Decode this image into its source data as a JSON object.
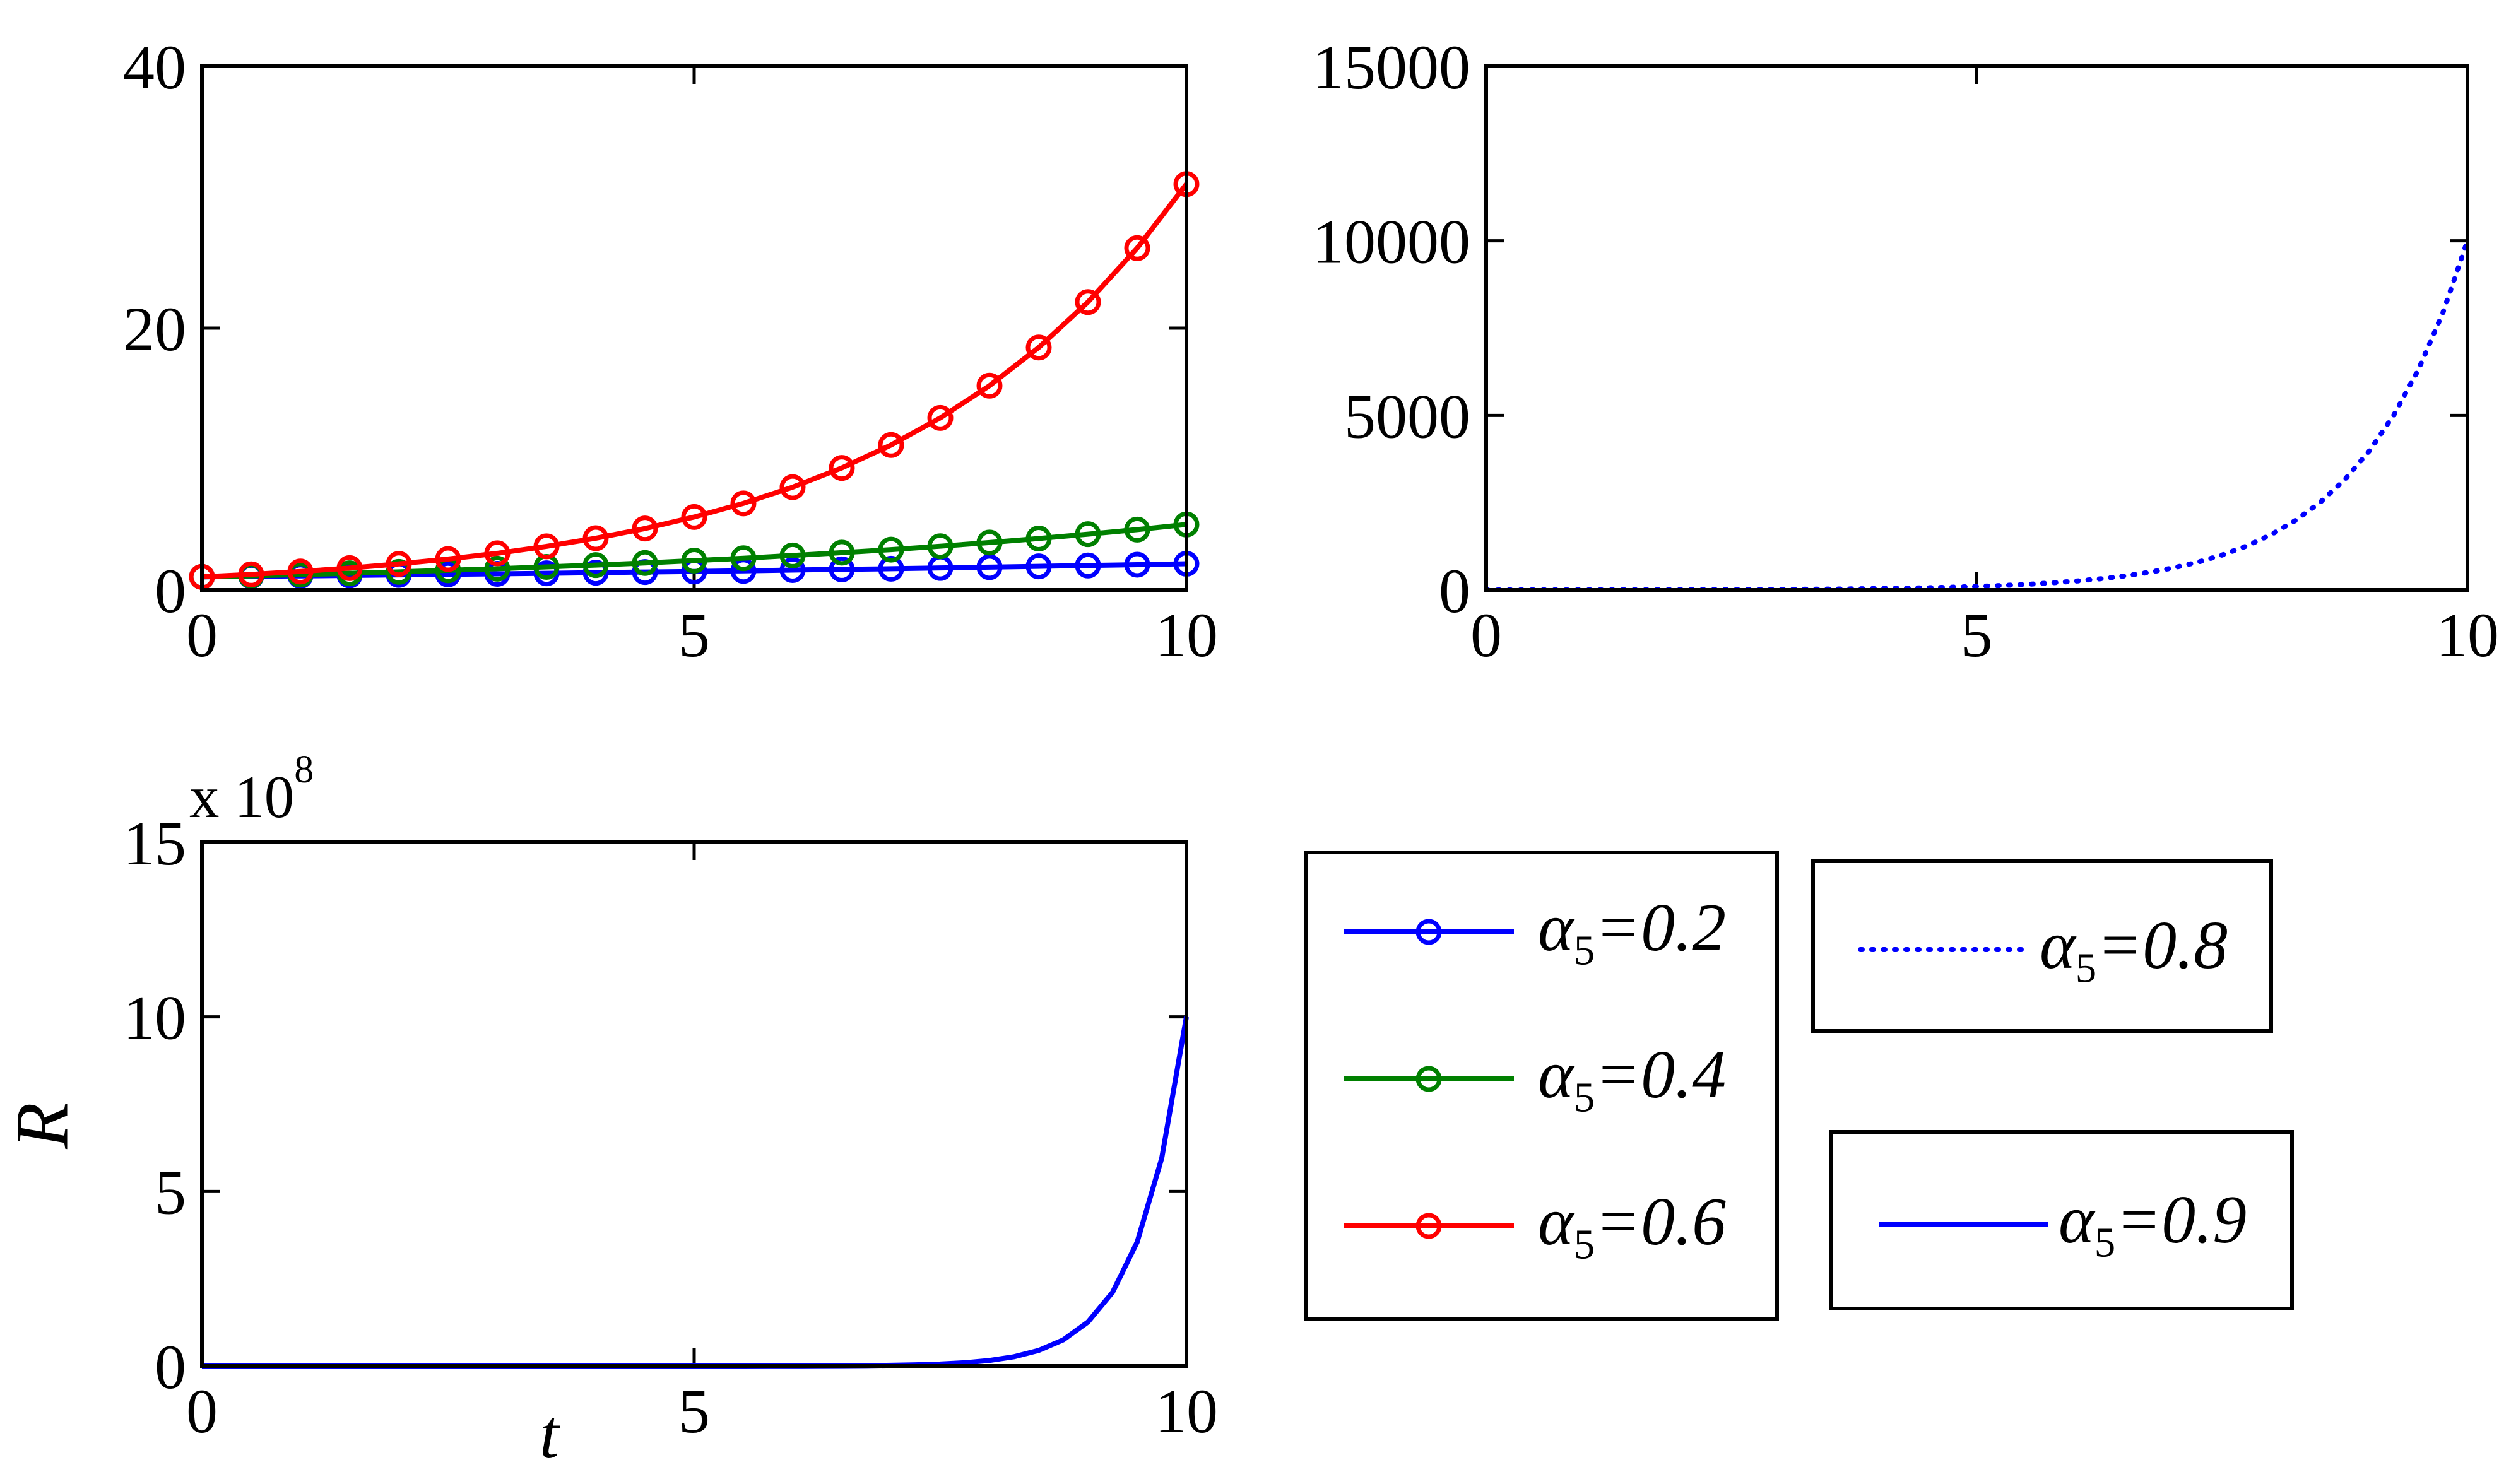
{
  "chart_data": [
    {
      "type": "line",
      "position": "top-left",
      "xlim": [
        0,
        10
      ],
      "ylim": [
        0,
        40
      ],
      "xticks": [
        0,
        5,
        10
      ],
      "xticklabels": [
        "0",
        "5",
        "10"
      ],
      "yticks": [
        0,
        20,
        40
      ],
      "yticklabels": [
        "0",
        "20",
        "40"
      ],
      "series": [
        {
          "name": "alpha_5=0.2",
          "color": "#0000FF",
          "marker": "circle",
          "style": "solid",
          "x": [
            0,
            0.5,
            1,
            1.5,
            2,
            2.5,
            3,
            3.5,
            4,
            4.5,
            5,
            5.5,
            6,
            6.5,
            7,
            7.5,
            8,
            8.5,
            9,
            9.5,
            10
          ],
          "y": [
            1,
            1.04,
            1.07,
            1.11,
            1.15,
            1.19,
            1.23,
            1.27,
            1.32,
            1.37,
            1.41,
            1.46,
            1.52,
            1.57,
            1.62,
            1.68,
            1.74,
            1.8,
            1.87,
            1.93,
            2
          ]
        },
        {
          "name": "alpha_5=0.4",
          "color": "#008000",
          "marker": "circle",
          "style": "solid",
          "x": [
            0,
            0.5,
            1,
            1.5,
            2,
            2.5,
            3,
            3.5,
            4,
            4.5,
            5,
            5.5,
            6,
            6.5,
            7,
            7.5,
            8,
            8.5,
            9,
            9.5,
            10
          ],
          "y": [
            1,
            1.08,
            1.17,
            1.27,
            1.38,
            1.5,
            1.62,
            1.76,
            1.9,
            2.06,
            2.24,
            2.42,
            2.63,
            2.85,
            3.08,
            3.34,
            3.62,
            3.93,
            4.26,
            4.61,
            5
          ]
        },
        {
          "name": "alpha_5=0.6",
          "color": "#FF0000",
          "marker": "circle",
          "style": "solid",
          "x": [
            0,
            0.5,
            1,
            1.5,
            2,
            2.5,
            3,
            3.5,
            4,
            4.5,
            5,
            5.5,
            6,
            6.5,
            7,
            7.5,
            8,
            8.5,
            9,
            9.5,
            10
          ],
          "y": [
            1,
            1.19,
            1.41,
            1.67,
            1.99,
            2.36,
            2.8,
            3.33,
            3.95,
            4.69,
            5.57,
            6.61,
            7.85,
            9.32,
            11.07,
            13.14,
            15.6,
            18.52,
            21.99,
            26.11,
            31
          ]
        }
      ]
    },
    {
      "type": "line",
      "position": "top-right",
      "xlim": [
        0,
        10
      ],
      "ylim": [
        0,
        15000
      ],
      "xticks": [
        0,
        5,
        10
      ],
      "xticklabels": [
        "0",
        "5",
        "10"
      ],
      "yticks": [
        0,
        5000,
        10000,
        15000
      ],
      "yticklabels": [
        "0",
        "5000",
        "10000",
        "15000"
      ],
      "series": [
        {
          "name": "alpha_5=0.8",
          "color": "#0000FF",
          "marker": "none",
          "style": "dotted",
          "x": [
            0,
            0.25,
            0.5,
            0.75,
            1,
            1.25,
            1.5,
            1.75,
            2,
            2.25,
            2.5,
            2.75,
            3,
            3.25,
            3.5,
            3.75,
            4,
            4.25,
            4.5,
            4.75,
            5,
            5.25,
            5.5,
            5.75,
            6,
            6.25,
            6.5,
            6.75,
            7,
            7.25,
            7.5,
            7.75,
            8,
            8.25,
            8.5,
            8.75,
            9,
            9.25,
            9.5,
            9.75,
            10
          ],
          "y": [
            1,
            1.26,
            1.58,
            2,
            2.51,
            3.16,
            3.98,
            5.01,
            6.31,
            7.94,
            10,
            12.6,
            15.8,
            20,
            25.1,
            31.6,
            39.8,
            50.1,
            63.1,
            79.4,
            100,
            126,
            158,
            200,
            251,
            316,
            398,
            501,
            631,
            794,
            1000,
            1259,
            1585,
            1995,
            2512,
            3162,
            3981,
            5012,
            6310,
            7943,
            10000
          ]
        }
      ]
    },
    {
      "type": "line",
      "position": "bottom-left",
      "xlabel": "t",
      "ylabel": "R",
      "multiplier": "x 10",
      "multiplier_exp": "8",
      "xlim": [
        0,
        10
      ],
      "ylim": [
        0,
        15
      ],
      "xticks": [
        0,
        5,
        10
      ],
      "xticklabels": [
        "0",
        "5",
        "10"
      ],
      "yticks": [
        0,
        5,
        10,
        15
      ],
      "yticklabels": [
        "0",
        "5",
        "10",
        "15"
      ],
      "series": [
        {
          "name": "alpha_5=0.9",
          "color": "#0000FF",
          "marker": "none",
          "style": "solid",
          "x": [
            0,
            0.25,
            0.5,
            0.75,
            1,
            1.25,
            1.5,
            1.75,
            2,
            2.25,
            2.5,
            2.75,
            3,
            3.25,
            3.5,
            3.75,
            4,
            4.25,
            4.5,
            4.75,
            5,
            5.25,
            5.5,
            5.75,
            6,
            6.25,
            6.5,
            6.75,
            7,
            7.25,
            7.5,
            7.75,
            8,
            8.25,
            8.5,
            8.75,
            9,
            9.25,
            9.5,
            9.75,
            10
          ],
          "y": [
            0,
            0,
            0,
            0,
            0,
            0,
            0,
            0,
            0,
            0,
            0,
            0,
            0,
            0,
            0,
            0,
            0,
            0,
            0,
            0,
            0.0003,
            0.0006,
            0.0009,
            0.0015,
            0.0025,
            0.0042,
            0.0071,
            0.0119,
            0.02,
            0.034,
            0.056,
            0.094,
            0.158,
            0.266,
            0.447,
            0.75,
            1.26,
            2.11,
            3.55,
            5.96,
            10
          ]
        }
      ]
    }
  ],
  "legends": {
    "box1": {
      "entries": [
        {
          "symbol": "α",
          "sub": "5",
          "rest": "=0.2",
          "color": "#0000FF",
          "line": "solid-circle"
        },
        {
          "symbol": "α",
          "sub": "5",
          "rest": "=0.4",
          "color": "#008000",
          "line": "solid-circle"
        },
        {
          "symbol": "α",
          "sub": "5",
          "rest": "=0.6",
          "color": "#FF0000",
          "line": "solid-circle"
        }
      ]
    },
    "box2": {
      "entries": [
        {
          "symbol": "α",
          "sub": "5",
          "rest": "=0.8",
          "color": "#0000FF",
          "line": "dotted",
          "dash": "3 15"
        }
      ]
    },
    "box3": {
      "entries": [
        {
          "symbol": "α",
          "sub": "5",
          "rest": "=0.9",
          "color": "#0000FF",
          "line": "solid"
        }
      ]
    }
  }
}
